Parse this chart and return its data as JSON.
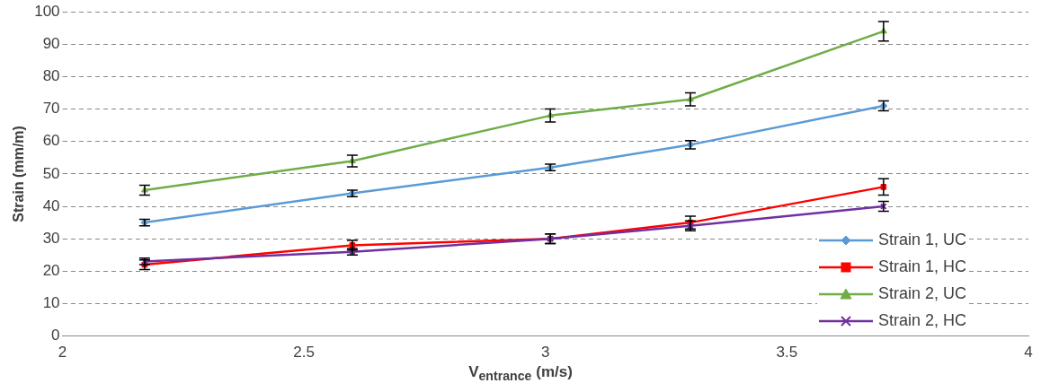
{
  "chart_data": {
    "type": "line",
    "xlabel": "V$_{entrance}$ (m/s)",
    "ylabel": "Strain (mm/m)",
    "xlim": [
      2,
      4
    ],
    "xticks": [
      2,
      2.5,
      3,
      3.5,
      4
    ],
    "ylim": [
      0,
      100
    ],
    "yticks": [
      0,
      10,
      20,
      30,
      40,
      50,
      60,
      70,
      80,
      90,
      100
    ],
    "grid": "y",
    "legend": "bottom right",
    "series": [
      {
        "name": "Strain 1, UC",
        "color": "#5b9bd5",
        "marker": "diamond",
        "x": [
          2.17,
          2.6,
          3.01,
          3.3,
          3.7
        ],
        "values": [
          35,
          44,
          52,
          59,
          71
        ],
        "errors": [
          1,
          1,
          1,
          1.3,
          1.5
        ]
      },
      {
        "name": "Strain 1, HC",
        "color": "#ff0000",
        "marker": "square",
        "x": [
          2.17,
          2.6,
          3.01,
          3.3,
          3.7
        ],
        "values": [
          22,
          28,
          30,
          35,
          46
        ],
        "errors": [
          1.5,
          1.5,
          1.5,
          2,
          2.5
        ]
      },
      {
        "name": "Strain 2, UC",
        "color": "#70ad47",
        "marker": "triangle",
        "x": [
          2.17,
          2.6,
          3.01,
          3.3,
          3.7
        ],
        "values": [
          45,
          54,
          68,
          73,
          94
        ],
        "errors": [
          1.5,
          1.8,
          2,
          2,
          3
        ]
      },
      {
        "name": "Strain 2, HC",
        "color": "#7030a0",
        "marker": "cross",
        "x": [
          2.17,
          2.6,
          3.01,
          3.3,
          3.7
        ],
        "values": [
          23,
          26,
          30,
          34,
          40
        ],
        "errors": [
          1,
          1,
          1.5,
          1.5,
          1.5
        ]
      }
    ]
  }
}
